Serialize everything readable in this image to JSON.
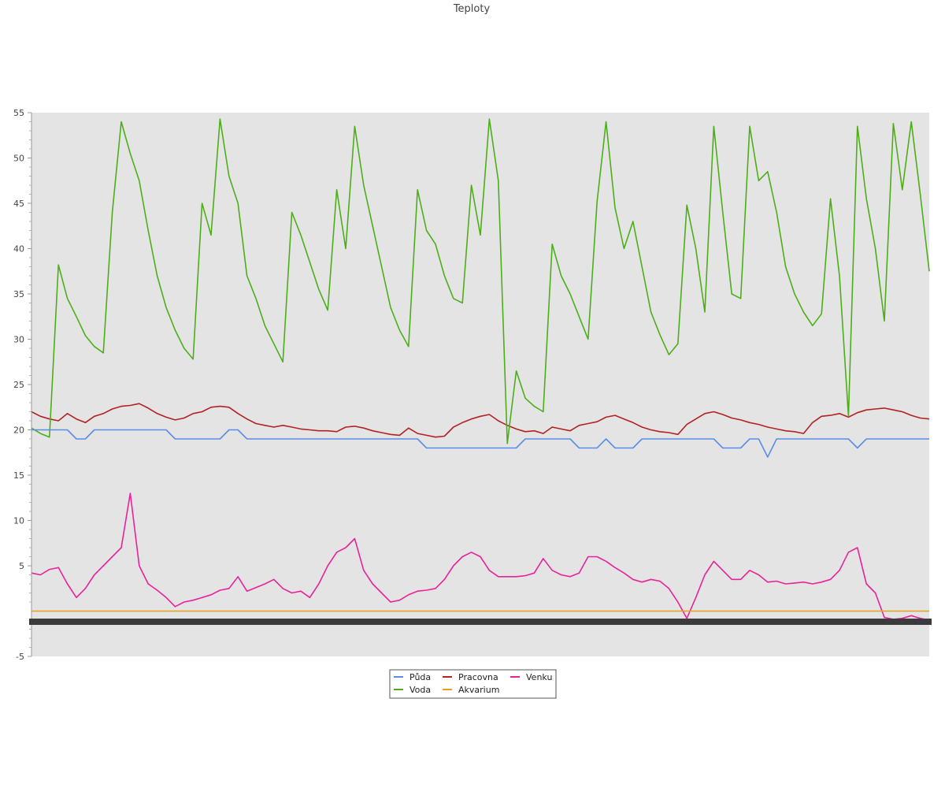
{
  "chart_data": {
    "type": "line",
    "title": "Teploty",
    "xlabel": "",
    "ylabel": "",
    "ylim": [
      -5,
      55
    ],
    "yticks": [
      55,
      50,
      45,
      40,
      35,
      30,
      25,
      20,
      15,
      10,
      5,
      -5
    ],
    "grid": false,
    "legend_position": "bottom-center",
    "x": [
      0,
      1,
      2,
      3,
      4,
      5,
      6,
      7,
      8,
      9,
      10,
      11,
      12,
      13,
      14,
      15,
      16,
      17,
      18,
      19,
      20,
      21,
      22,
      23,
      24,
      25,
      26,
      27,
      28,
      29,
      30,
      31,
      32,
      33,
      34,
      35,
      36,
      37,
      38,
      39,
      40,
      41,
      42,
      43,
      44,
      45,
      46,
      47,
      48,
      49,
      50,
      51,
      52,
      53,
      54,
      55,
      56,
      57,
      58,
      59,
      60,
      61,
      62,
      63,
      64,
      65,
      66,
      67,
      68,
      69,
      70,
      71,
      72,
      73,
      74,
      75,
      76,
      77,
      78,
      79,
      80,
      81,
      82,
      83,
      84,
      85,
      86,
      87,
      88,
      89,
      90,
      91,
      92,
      93,
      94,
      95,
      96,
      97,
      98,
      99,
      100
    ],
    "series": [
      {
        "name": "Půda",
        "color": "#5b8de8",
        "values": [
          20,
          20,
          20,
          20,
          20,
          19,
          19,
          20,
          20,
          20,
          20,
          20,
          20,
          20,
          20,
          20,
          19,
          19,
          19,
          19,
          19,
          19,
          20,
          20,
          19,
          19,
          19,
          19,
          19,
          19,
          19,
          19,
          19,
          19,
          19,
          19,
          19,
          19,
          19,
          19,
          19,
          19,
          19,
          19,
          18,
          18,
          18,
          18,
          18,
          18,
          18,
          18,
          18,
          18,
          18,
          19,
          19,
          19,
          19,
          19,
          19,
          18,
          18,
          18,
          19,
          18,
          18,
          18,
          19,
          19,
          19,
          19,
          19,
          19,
          19,
          19,
          19,
          18,
          18,
          18,
          19,
          19,
          17,
          19,
          19,
          19,
          19,
          19,
          19,
          19,
          19,
          19,
          18,
          19,
          19,
          19,
          19,
          19,
          19,
          19,
          19
        ]
      },
      {
        "name": "Voda",
        "color": "#4caf18",
        "values": [
          20.2,
          19.6,
          19.2,
          38.2,
          34.5,
          32.5,
          30.4,
          29.2,
          28.5,
          44,
          54,
          50.5,
          47.5,
          42,
          37,
          33.5,
          31,
          29,
          27.8,
          45,
          41.5,
          54.3,
          48,
          45,
          37,
          34.5,
          31.5,
          29.5,
          27.5,
          44,
          41.5,
          38.5,
          35.5,
          33.2,
          46.5,
          40,
          53.5,
          47,
          42.5,
          38,
          33.5,
          31,
          29.2,
          46.5,
          42,
          40.5,
          37,
          34.5,
          34,
          47,
          41.5,
          54.3,
          47.5,
          18.5,
          26.5,
          23.5,
          22.6,
          22,
          40.5,
          37,
          35,
          32.5,
          30,
          45.2,
          54,
          44.5,
          40,
          43,
          38,
          33,
          30.5,
          28.3,
          29.5,
          44.8,
          40,
          33,
          53.5,
          44,
          35,
          34.5,
          53.5,
          47.5,
          48.5,
          44,
          38,
          35,
          33,
          31.5,
          32.8,
          45.5,
          37,
          21.5,
          53.5,
          45.5,
          40,
          32,
          53.8,
          46.5,
          54,
          46,
          37.5
        ]
      },
      {
        "name": "Pracovna",
        "color": "#b22222",
        "values": [
          22,
          21.5,
          21.2,
          21,
          21.8,
          21.2,
          20.8,
          21.5,
          21.8,
          22.3,
          22.6,
          22.7,
          22.9,
          22.4,
          21.8,
          21.4,
          21.1,
          21.3,
          21.8,
          22.0,
          22.5,
          22.6,
          22.5,
          21.8,
          21.2,
          20.7,
          20.5,
          20.3,
          20.5,
          20.3,
          20.1,
          20.0,
          19.9,
          19.9,
          19.8,
          20.3,
          20.4,
          20.2,
          19.9,
          19.7,
          19.5,
          19.4,
          20.2,
          19.6,
          19.4,
          19.2,
          19.3,
          20.3,
          20.8,
          21.2,
          21.5,
          21.7,
          21.0,
          20.5,
          20.1,
          19.8,
          19.9,
          19.6,
          20.3,
          20.1,
          19.9,
          20.5,
          20.7,
          20.9,
          21.4,
          21.6,
          21.2,
          20.8,
          20.3,
          20.0,
          19.8,
          19.7,
          19.5,
          20.6,
          21.2,
          21.8,
          22.0,
          21.7,
          21.3,
          21.1,
          20.8,
          20.6,
          20.3,
          20.1,
          19.9,
          19.8,
          19.6,
          20.8,
          21.5,
          21.6,
          21.8,
          21.4,
          21.9,
          22.2,
          22.3,
          22.4,
          22.2,
          22.0,
          21.6,
          21.3,
          21.2
        ]
      },
      {
        "name": "Akvarium",
        "color": "#e6a01c",
        "values": [
          0,
          0,
          0,
          0,
          0,
          0,
          0,
          0,
          0,
          0,
          0,
          0,
          0,
          0,
          0,
          0,
          0,
          0,
          0,
          0,
          0,
          0,
          0,
          0,
          0,
          0,
          0,
          0,
          0,
          0,
          0,
          0,
          0,
          0,
          0,
          0,
          0,
          0,
          0,
          0,
          0,
          0,
          0,
          0,
          0,
          0,
          0,
          0,
          0,
          0,
          0,
          0,
          0,
          0,
          0,
          0,
          0,
          0,
          0,
          0,
          0,
          0,
          0,
          0,
          0,
          0,
          0,
          0,
          0,
          0,
          0,
          0,
          0,
          0,
          0,
          0,
          0,
          0,
          0,
          0,
          0,
          0,
          0,
          0,
          0,
          0,
          0,
          0,
          0,
          0,
          0,
          0,
          0,
          0,
          0,
          0,
          0,
          0,
          0,
          0,
          0
        ]
      },
      {
        "name": "Venku",
        "color": "#e8239a",
        "values": [
          4.2,
          4.0,
          4.6,
          4.8,
          3.0,
          1.5,
          2.5,
          4.0,
          5.0,
          6.0,
          7.0,
          13.0,
          5.0,
          3.0,
          2.3,
          1.5,
          0.5,
          1.0,
          1.2,
          1.5,
          1.8,
          2.3,
          2.5,
          3.8,
          2.2,
          2.6,
          3.0,
          3.5,
          2.5,
          2.0,
          2.2,
          1.5,
          3.0,
          5.0,
          6.5,
          7.0,
          8.0,
          4.5,
          3.0,
          2.0,
          1.0,
          1.2,
          1.8,
          2.2,
          2.3,
          2.5,
          3.5,
          5.0,
          6.0,
          6.5,
          6.0,
          4.5,
          3.8,
          3.8,
          3.8,
          3.9,
          4.2,
          5.8,
          4.5,
          4.0,
          3.8,
          4.2,
          6.0,
          6.0,
          5.5,
          4.8,
          4.2,
          3.5,
          3.2,
          3.5,
          3.3,
          2.5,
          1.0,
          -0.8,
          1.5,
          4.0,
          5.5,
          4.5,
          3.5,
          3.5,
          4.5,
          4.0,
          3.2,
          3.3,
          3.0,
          3.1,
          3.2,
          3.0,
          3.2,
          3.5,
          4.5,
          6.5,
          7.0,
          3.0,
          2.0,
          -0.7,
          -0.9,
          -0.8,
          -0.5,
          -0.8,
          -1.0
        ]
      }
    ]
  }
}
